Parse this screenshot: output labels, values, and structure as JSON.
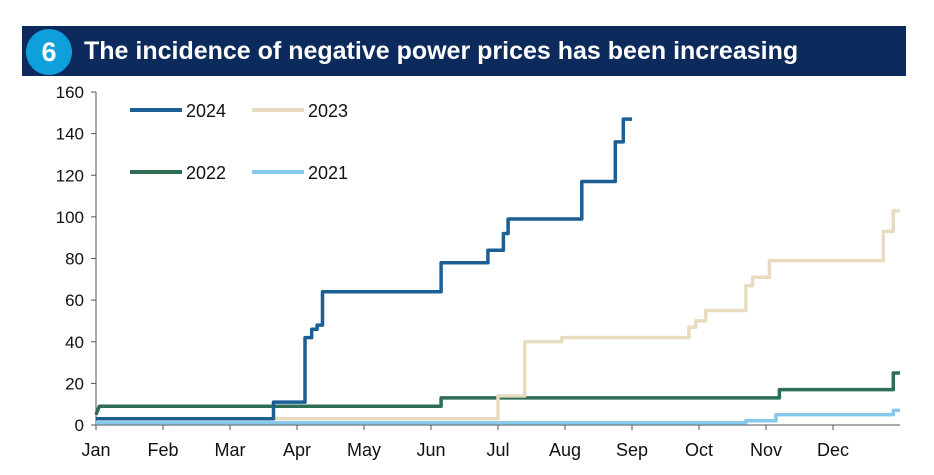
{
  "header": {
    "number": "6",
    "title": "The incidence of negative power prices has been increasing"
  },
  "chart_data": {
    "type": "line",
    "title": "The incidence of negative power prices has been increasing",
    "xlabel": "",
    "ylabel": "",
    "xlim": [
      0,
      12
    ],
    "ylim": [
      0,
      160
    ],
    "yticks": [
      0,
      20,
      40,
      60,
      80,
      100,
      120,
      140,
      160
    ],
    "xticks": [
      {
        "label": "Jan",
        "x": 0
      },
      {
        "label": "Feb",
        "x": 1
      },
      {
        "label": "Mar",
        "x": 2
      },
      {
        "label": "Apr",
        "x": 3
      },
      {
        "label": "May",
        "x": 4
      },
      {
        "label": "Jun",
        "x": 5
      },
      {
        "label": "Jul",
        "x": 6
      },
      {
        "label": "Aug",
        "x": 7
      },
      {
        "label": "Sep",
        "x": 8
      },
      {
        "label": "Oct",
        "x": 9
      },
      {
        "label": "Nov",
        "x": 10
      },
      {
        "label": "Dec",
        "x": 11
      }
    ],
    "grid": false,
    "legend": "top-left",
    "series": [
      {
        "name": "2024",
        "color": "#1b5f94",
        "step": true,
        "points": [
          [
            0,
            3
          ],
          [
            2.65,
            3
          ],
          [
            2.65,
            11
          ],
          [
            3.12,
            11
          ],
          [
            3.12,
            42
          ],
          [
            3.22,
            42
          ],
          [
            3.22,
            46
          ],
          [
            3.3,
            46
          ],
          [
            3.3,
            48
          ],
          [
            3.38,
            48
          ],
          [
            3.38,
            64
          ],
          [
            5.15,
            64
          ],
          [
            5.15,
            78
          ],
          [
            5.85,
            78
          ],
          [
            5.85,
            84
          ],
          [
            6.08,
            84
          ],
          [
            6.08,
            92
          ],
          [
            6.15,
            92
          ],
          [
            6.15,
            99
          ],
          [
            7.25,
            99
          ],
          [
            7.25,
            117
          ],
          [
            7.75,
            117
          ],
          [
            7.75,
            136
          ],
          [
            7.87,
            136
          ],
          [
            7.87,
            147
          ],
          [
            8.0,
            147
          ]
        ]
      },
      {
        "name": "2023",
        "color": "#e8dcc0",
        "step": true,
        "points": [
          [
            0,
            3
          ],
          [
            6.0,
            3
          ],
          [
            6.0,
            14
          ],
          [
            6.4,
            14
          ],
          [
            6.4,
            40
          ],
          [
            6.95,
            40
          ],
          [
            6.95,
            42
          ],
          [
            8.85,
            42
          ],
          [
            8.85,
            47
          ],
          [
            8.95,
            47
          ],
          [
            8.95,
            50
          ],
          [
            9.1,
            50
          ],
          [
            9.1,
            55
          ],
          [
            9.7,
            55
          ],
          [
            9.7,
            67
          ],
          [
            9.8,
            67
          ],
          [
            9.8,
            71
          ],
          [
            10.05,
            71
          ],
          [
            10.05,
            79
          ],
          [
            11.75,
            79
          ],
          [
            11.75,
            93
          ],
          [
            11.9,
            93
          ],
          [
            11.9,
            103
          ],
          [
            12,
            103
          ]
        ]
      },
      {
        "name": "2022",
        "color": "#2d6e55",
        "step": true,
        "points": [
          [
            0,
            5
          ],
          [
            0.05,
            9
          ],
          [
            5.15,
            9
          ],
          [
            5.15,
            13
          ],
          [
            10.2,
            13
          ],
          [
            10.2,
            17
          ],
          [
            11.9,
            17
          ],
          [
            11.9,
            25
          ],
          [
            12,
            25
          ]
        ]
      },
      {
        "name": "2021",
        "color": "#85c8ec",
        "step": true,
        "points": [
          [
            0,
            1
          ],
          [
            9.7,
            1
          ],
          [
            9.7,
            2
          ],
          [
            10.15,
            2
          ],
          [
            10.15,
            5
          ],
          [
            11.9,
            5
          ],
          [
            11.9,
            7
          ],
          [
            12,
            7
          ]
        ]
      }
    ]
  }
}
